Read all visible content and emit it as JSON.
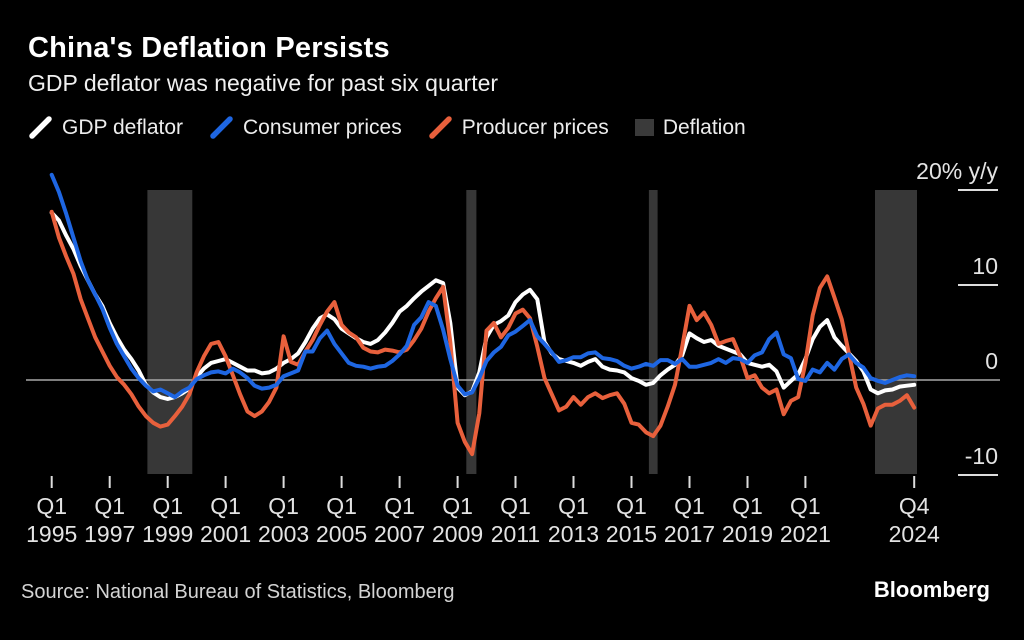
{
  "header": {
    "title": "China's Deflation Persists",
    "subtitle": "GDP deflator was negative for past six quarter"
  },
  "legend": [
    {
      "label": "GDP deflator",
      "color": "#ffffff",
      "type": "line"
    },
    {
      "label": "Consumer prices",
      "color": "#1e66e2",
      "type": "line"
    },
    {
      "label": "Producer prices",
      "color": "#e8603c",
      "type": "line"
    },
    {
      "label": "Deflation",
      "color": "#3a3a3a",
      "type": "box"
    }
  ],
  "footer": {
    "source": "Source: National Bureau of Statistics, Bloomberg",
    "logo": "Bloomberg"
  },
  "chart_data": {
    "type": "line",
    "title": "China's Deflation Persists",
    "x_start_year": 1995,
    "x_step_years": 0.25,
    "ylim": [
      -13,
      22
    ],
    "grid": "off",
    "legend_position": "top",
    "colors": {
      "background": "#000000",
      "band": "#373737",
      "zero_line": "#a8a8a8",
      "tick": "#dddddd"
    },
    "y_ticks": [
      {
        "label": "20% y/y",
        "value": 20
      },
      {
        "label": "10",
        "value": 10
      },
      {
        "label": "0",
        "value": 0
      },
      {
        "label": "-10",
        "value": -10
      }
    ],
    "x_ticks": [
      {
        "q": "Q1",
        "year_label": "1995",
        "year": 1995
      },
      {
        "q": "Q1",
        "year_label": "1997",
        "year": 1997
      },
      {
        "q": "Q1",
        "year_label": "1999",
        "year": 1999
      },
      {
        "q": "Q1",
        "year_label": "2001",
        "year": 2001
      },
      {
        "q": "Q1",
        "year_label": "2003",
        "year": 2003
      },
      {
        "q": "Q1",
        "year_label": "2005",
        "year": 2005
      },
      {
        "q": "Q1",
        "year_label": "2007",
        "year": 2007
      },
      {
        "q": "Q1",
        "year_label": "2009",
        "year": 2009
      },
      {
        "q": "Q1",
        "year_label": "2011",
        "year": 2011
      },
      {
        "q": "Q1",
        "year_label": "2013",
        "year": 2013
      },
      {
        "q": "Q1",
        "year_label": "2015",
        "year": 2015
      },
      {
        "q": "Q1",
        "year_label": "2017",
        "year": 2017
      },
      {
        "q": "Q1",
        "year_label": "2019",
        "year": 2019
      },
      {
        "q": "Q1",
        "year_label": "2021",
        "year": 2021
      },
      {
        "q": "Q4",
        "year_label": "2024",
        "year": 2024.75
      }
    ],
    "deflation_bands": [
      {
        "start": 1998.3,
        "end": 1999.85
      },
      {
        "start": 2009.3,
        "end": 2009.65
      },
      {
        "start": 2015.6,
        "end": 2015.9
      },
      {
        "start": 2023.4,
        "end": 2024.85
      }
    ],
    "draw_order": [
      0,
      2,
      1
    ],
    "series": [
      {
        "name": "GDP deflator",
        "data_name": "gdp-deflator-line",
        "color": "#ffffff",
        "values": [
          17.6,
          16.8,
          15.2,
          13.8,
          12.0,
          10.5,
          9.0,
          7.8,
          6.0,
          4.5,
          3.2,
          2.2,
          1.0,
          -0.5,
          -1.3,
          -1.8,
          -2.0,
          -1.8,
          -1.4,
          -0.9,
          0.3,
          1.2,
          1.8,
          2.0,
          2.2,
          1.8,
          1.4,
          1.0,
          1.0,
          0.7,
          0.8,
          1.2,
          1.8,
          2.2,
          2.8,
          4.0,
          5.4,
          6.5,
          6.9,
          6.4,
          5.4,
          4.9,
          4.4,
          4.0,
          3.8,
          4.2,
          5.0,
          6.0,
          7.2,
          7.8,
          8.6,
          9.3,
          9.9,
          10.5,
          10.2,
          6.0,
          -0.8,
          -1.6,
          -1.2,
          0.8,
          4.5,
          5.8,
          6.2,
          6.8,
          8.2,
          9.0,
          9.5,
          8.5,
          4.0,
          2.8,
          2.2,
          2.0,
          1.8,
          1.5,
          1.9,
          2.2,
          1.4,
          1.1,
          1.0,
          0.8,
          0.2,
          -0.1,
          -0.5,
          -0.3,
          0.5,
          1.1,
          1.6,
          2.6,
          4.9,
          4.4,
          4.0,
          4.2,
          3.6,
          3.3,
          3.0,
          2.7,
          1.8,
          1.6,
          1.4,
          1.6,
          0.9,
          -0.8,
          -0.1,
          0.6,
          2.2,
          4.3,
          5.6,
          6.3,
          4.5,
          3.6,
          2.8,
          2.0,
          0.9,
          -1.0,
          -1.4,
          -1.1,
          -1.0,
          -0.7,
          -0.6,
          -0.5
        ]
      },
      {
        "name": "Consumer prices",
        "data_name": "consumer-prices-line",
        "color": "#1e66e2",
        "values": [
          21.6,
          19.8,
          17.5,
          15.0,
          12.5,
          10.5,
          9.0,
          7.5,
          5.5,
          3.8,
          2.5,
          1.2,
          0.2,
          -0.6,
          -1.2,
          -1.0,
          -1.4,
          -1.8,
          -1.2,
          -0.8,
          0.1,
          0.5,
          0.8,
          0.9,
          0.7,
          1.2,
          0.8,
          0.2,
          -0.6,
          -0.9,
          -0.8,
          -0.5,
          0.4,
          0.7,
          1.0,
          3.0,
          3.0,
          4.4,
          5.2,
          3.8,
          2.8,
          1.8,
          1.5,
          1.4,
          1.2,
          1.4,
          1.5,
          2.0,
          2.7,
          3.6,
          5.8,
          6.6,
          8.2,
          7.8,
          5.3,
          2.2,
          -0.6,
          -1.5,
          -1.3,
          0.2,
          2.0,
          2.9,
          3.5,
          4.7,
          5.1,
          5.7,
          6.3,
          4.6,
          3.8,
          2.9,
          1.9,
          2.1,
          2.4,
          2.4,
          2.8,
          2.9,
          2.3,
          2.2,
          2.0,
          1.5,
          1.2,
          1.4,
          1.7,
          1.5,
          2.1,
          2.1,
          1.7,
          2.2,
          1.4,
          1.4,
          1.6,
          1.8,
          2.2,
          1.8,
          2.3,
          2.2,
          1.8,
          2.6,
          2.9,
          4.3,
          5.0,
          2.7,
          2.3,
          0.1,
          -0.1,
          1.1,
          0.8,
          1.8,
          1.1,
          2.2,
          2.7,
          1.8,
          1.3,
          0.2,
          -0.1,
          -0.3,
          0.0,
          0.3,
          0.5,
          0.4
        ]
      },
      {
        "name": "Producer prices",
        "data_name": "producer-prices-line",
        "color": "#e8603c",
        "values": [
          17.7,
          15.0,
          13.0,
          11.2,
          8.5,
          6.5,
          4.5,
          3.0,
          1.5,
          0.3,
          -0.5,
          -1.5,
          -2.8,
          -3.8,
          -4.5,
          -4.9,
          -4.7,
          -3.8,
          -2.8,
          -1.5,
          0.8,
          2.5,
          3.8,
          4.0,
          2.5,
          0.5,
          -1.5,
          -3.3,
          -3.8,
          -3.3,
          -2.3,
          -0.8,
          4.6,
          1.9,
          1.6,
          3.0,
          4.2,
          5.8,
          7.2,
          8.2,
          5.8,
          5.0,
          4.5,
          3.4,
          3.0,
          2.9,
          3.2,
          3.1,
          2.9,
          3.2,
          4.2,
          5.4,
          7.2,
          8.6,
          9.8,
          4.0,
          -4.5,
          -6.5,
          -7.8,
          -3.5,
          5.2,
          6.0,
          4.5,
          5.5,
          7.0,
          7.4,
          6.5,
          3.5,
          0.2,
          -1.5,
          -3.2,
          -2.8,
          -1.8,
          -2.6,
          -1.8,
          -1.4,
          -1.9,
          -1.6,
          -1.4,
          -2.5,
          -4.5,
          -4.7,
          -5.5,
          -5.9,
          -4.8,
          -2.8,
          -0.5,
          3.5,
          7.8,
          6.3,
          7.1,
          5.8,
          3.8,
          4.1,
          4.3,
          2.5,
          0.2,
          0.5,
          -0.8,
          -1.4,
          -1.0,
          -3.6,
          -2.2,
          -1.8,
          1.8,
          6.8,
          9.7,
          10.9,
          8.7,
          6.4,
          2.8,
          -0.8,
          -2.5,
          -4.8,
          -3.0,
          -2.6,
          -2.6,
          -2.2,
          -1.6,
          -2.9
        ]
      }
    ]
  }
}
